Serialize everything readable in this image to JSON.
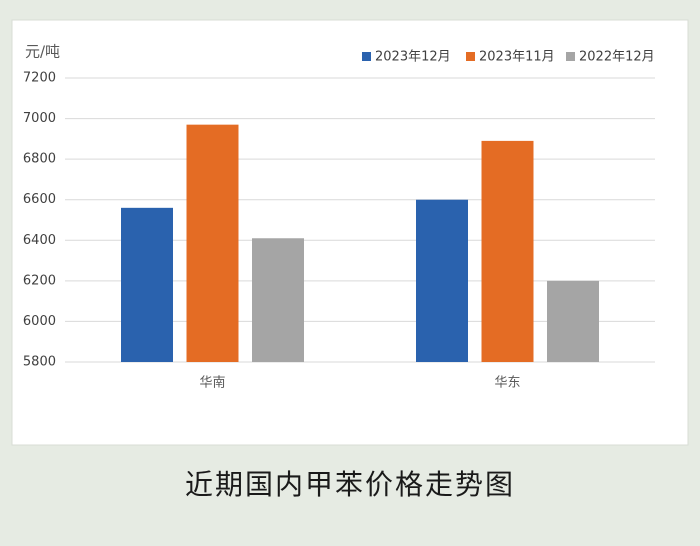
{
  "chart_data": {
    "type": "bar",
    "y_label": "元/吨",
    "categories": [
      "华南",
      "华东"
    ],
    "series": [
      {
        "name": "2023年12月",
        "color": "#2a62ae",
        "values": [
          6560,
          6600
        ]
      },
      {
        "name": "2023年11月",
        "color": "#e46c24",
        "values": [
          6970,
          6890
        ]
      },
      {
        "name": "2022年12月",
        "color": "#a5a5a5",
        "values": [
          6410,
          6200
        ]
      }
    ],
    "ylim": [
      5800,
      7200
    ],
    "yticks": [
      5800,
      6000,
      6200,
      6400,
      6600,
      6800,
      7000,
      7200
    ],
    "grid": true,
    "legend": "top-right"
  },
  "caption": "近期国内甲苯价格走势图"
}
